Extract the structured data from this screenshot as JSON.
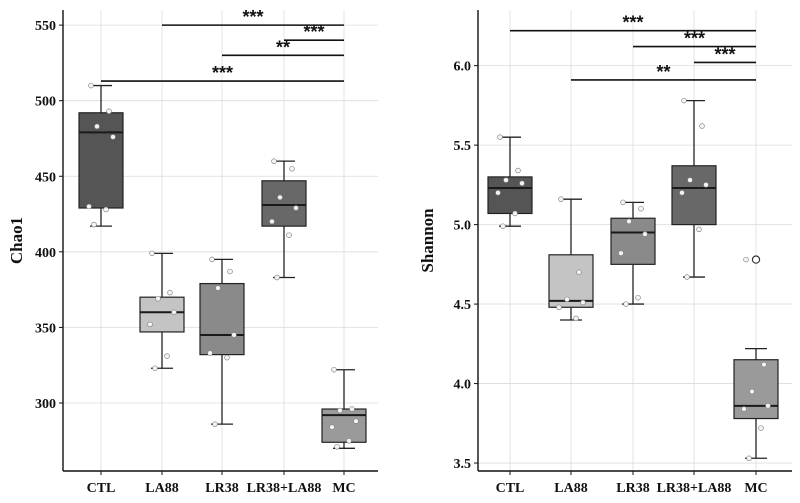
{
  "chart_data": [
    {
      "type": "box",
      "ylabel": "Chao1",
      "categories": [
        "CTL",
        "LA88",
        "LR38",
        "LR38+LA88",
        "MC"
      ],
      "ylim": [
        255,
        560
      ],
      "yticks": [
        300,
        350,
        400,
        450,
        500,
        550
      ],
      "grid": true,
      "boxes": [
        {
          "category": "CTL",
          "min": 417,
          "q1": 429,
          "median": 479,
          "q3": 492,
          "max": 510,
          "color": "#555555",
          "points": [
            510,
            493,
            483,
            476,
            430,
            428,
            418
          ]
        },
        {
          "category": "LA88",
          "min": 323,
          "q1": 347,
          "median": 360,
          "q3": 370,
          "max": 399,
          "color": "#c4c4c4",
          "points": [
            399,
            373,
            369,
            360,
            352,
            331,
            323
          ]
        },
        {
          "category": "LR38",
          "min": 286,
          "q1": 332,
          "median": 345,
          "q3": 379,
          "max": 395,
          "color": "#8a8a8a",
          "points": [
            395,
            387,
            376,
            345,
            333,
            330,
            286
          ]
        },
        {
          "category": "LR38+LA88",
          "min": 383,
          "q1": 417,
          "median": 431,
          "q3": 447,
          "max": 460,
          "color": "#686868",
          "points": [
            460,
            455,
            436,
            429,
            420,
            411,
            383
          ]
        },
        {
          "category": "MC",
          "min": 270,
          "q1": 274,
          "median": 292,
          "q3": 296,
          "max": 322,
          "color": "#9a9a9a",
          "points": [
            322,
            296,
            295,
            288,
            284,
            275,
            271
          ]
        }
      ],
      "significance": [
        {
          "from": "LA88",
          "to": "MC",
          "label": "***",
          "y": 550
        },
        {
          "from": "LR38+LA88",
          "to": "MC",
          "label": "***",
          "y": 540
        },
        {
          "from": "LR38",
          "to": "MC",
          "label": "**",
          "y": 530
        },
        {
          "from": "CTL",
          "to": "MC",
          "label": "***",
          "y": 513
        }
      ]
    },
    {
      "type": "box",
      "ylabel": "Shannon",
      "categories": [
        "CTL",
        "LA88",
        "LR38",
        "LR38+LA88",
        "MC"
      ],
      "ylim": [
        3.45,
        6.35
      ],
      "yticks": [
        3.5,
        4.0,
        4.5,
        5.0,
        5.5,
        6.0
      ],
      "yticklabels": [
        "3.5",
        "4.0",
        "4.5",
        "5.0",
        "5.5",
        "6.0"
      ],
      "grid": true,
      "boxes": [
        {
          "category": "CTL",
          "min": 4.99,
          "q1": 5.07,
          "median": 5.23,
          "q3": 5.3,
          "max": 5.55,
          "color": "#555555",
          "points": [
            5.55,
            5.34,
            5.28,
            5.26,
            5.2,
            5.07,
            4.99
          ]
        },
        {
          "category": "LA88",
          "min": 4.4,
          "q1": 4.48,
          "median": 4.52,
          "q3": 4.81,
          "max": 5.16,
          "color": "#c4c4c4",
          "points": [
            5.16,
            4.7,
            4.53,
            4.51,
            4.48,
            4.41
          ]
        },
        {
          "category": "LR38",
          "min": 4.5,
          "q1": 4.75,
          "median": 4.95,
          "q3": 5.04,
          "max": 5.14,
          "color": "#8a8a8a",
          "points": [
            5.14,
            5.1,
            5.02,
            4.94,
            4.82,
            4.54,
            4.5
          ]
        },
        {
          "category": "LR38+LA88",
          "min": 4.67,
          "q1": 5.0,
          "median": 5.23,
          "q3": 5.37,
          "max": 5.78,
          "color": "#686868",
          "points": [
            5.78,
            5.62,
            5.28,
            5.25,
            5.2,
            4.97,
            4.67
          ]
        },
        {
          "category": "MC",
          "min": 3.53,
          "q1": 3.78,
          "median": 3.86,
          "q3": 4.15,
          "max": 4.22,
          "color": "#9a9a9a",
          "outliers": [
            4.78
          ],
          "points": [
            4.78,
            4.12,
            3.95,
            3.86,
            3.84,
            3.72,
            3.53
          ]
        }
      ],
      "significance": [
        {
          "from": "CTL",
          "to": "MC",
          "label": "***",
          "y": 6.22
        },
        {
          "from": "LR38",
          "to": "MC",
          "label": "***",
          "y": 6.12
        },
        {
          "from": "LR38+LA88",
          "to": "MC",
          "label": "***",
          "y": 6.02
        },
        {
          "from": "LA88",
          "to": "MC",
          "label": "**",
          "y": 5.91
        }
      ]
    }
  ]
}
